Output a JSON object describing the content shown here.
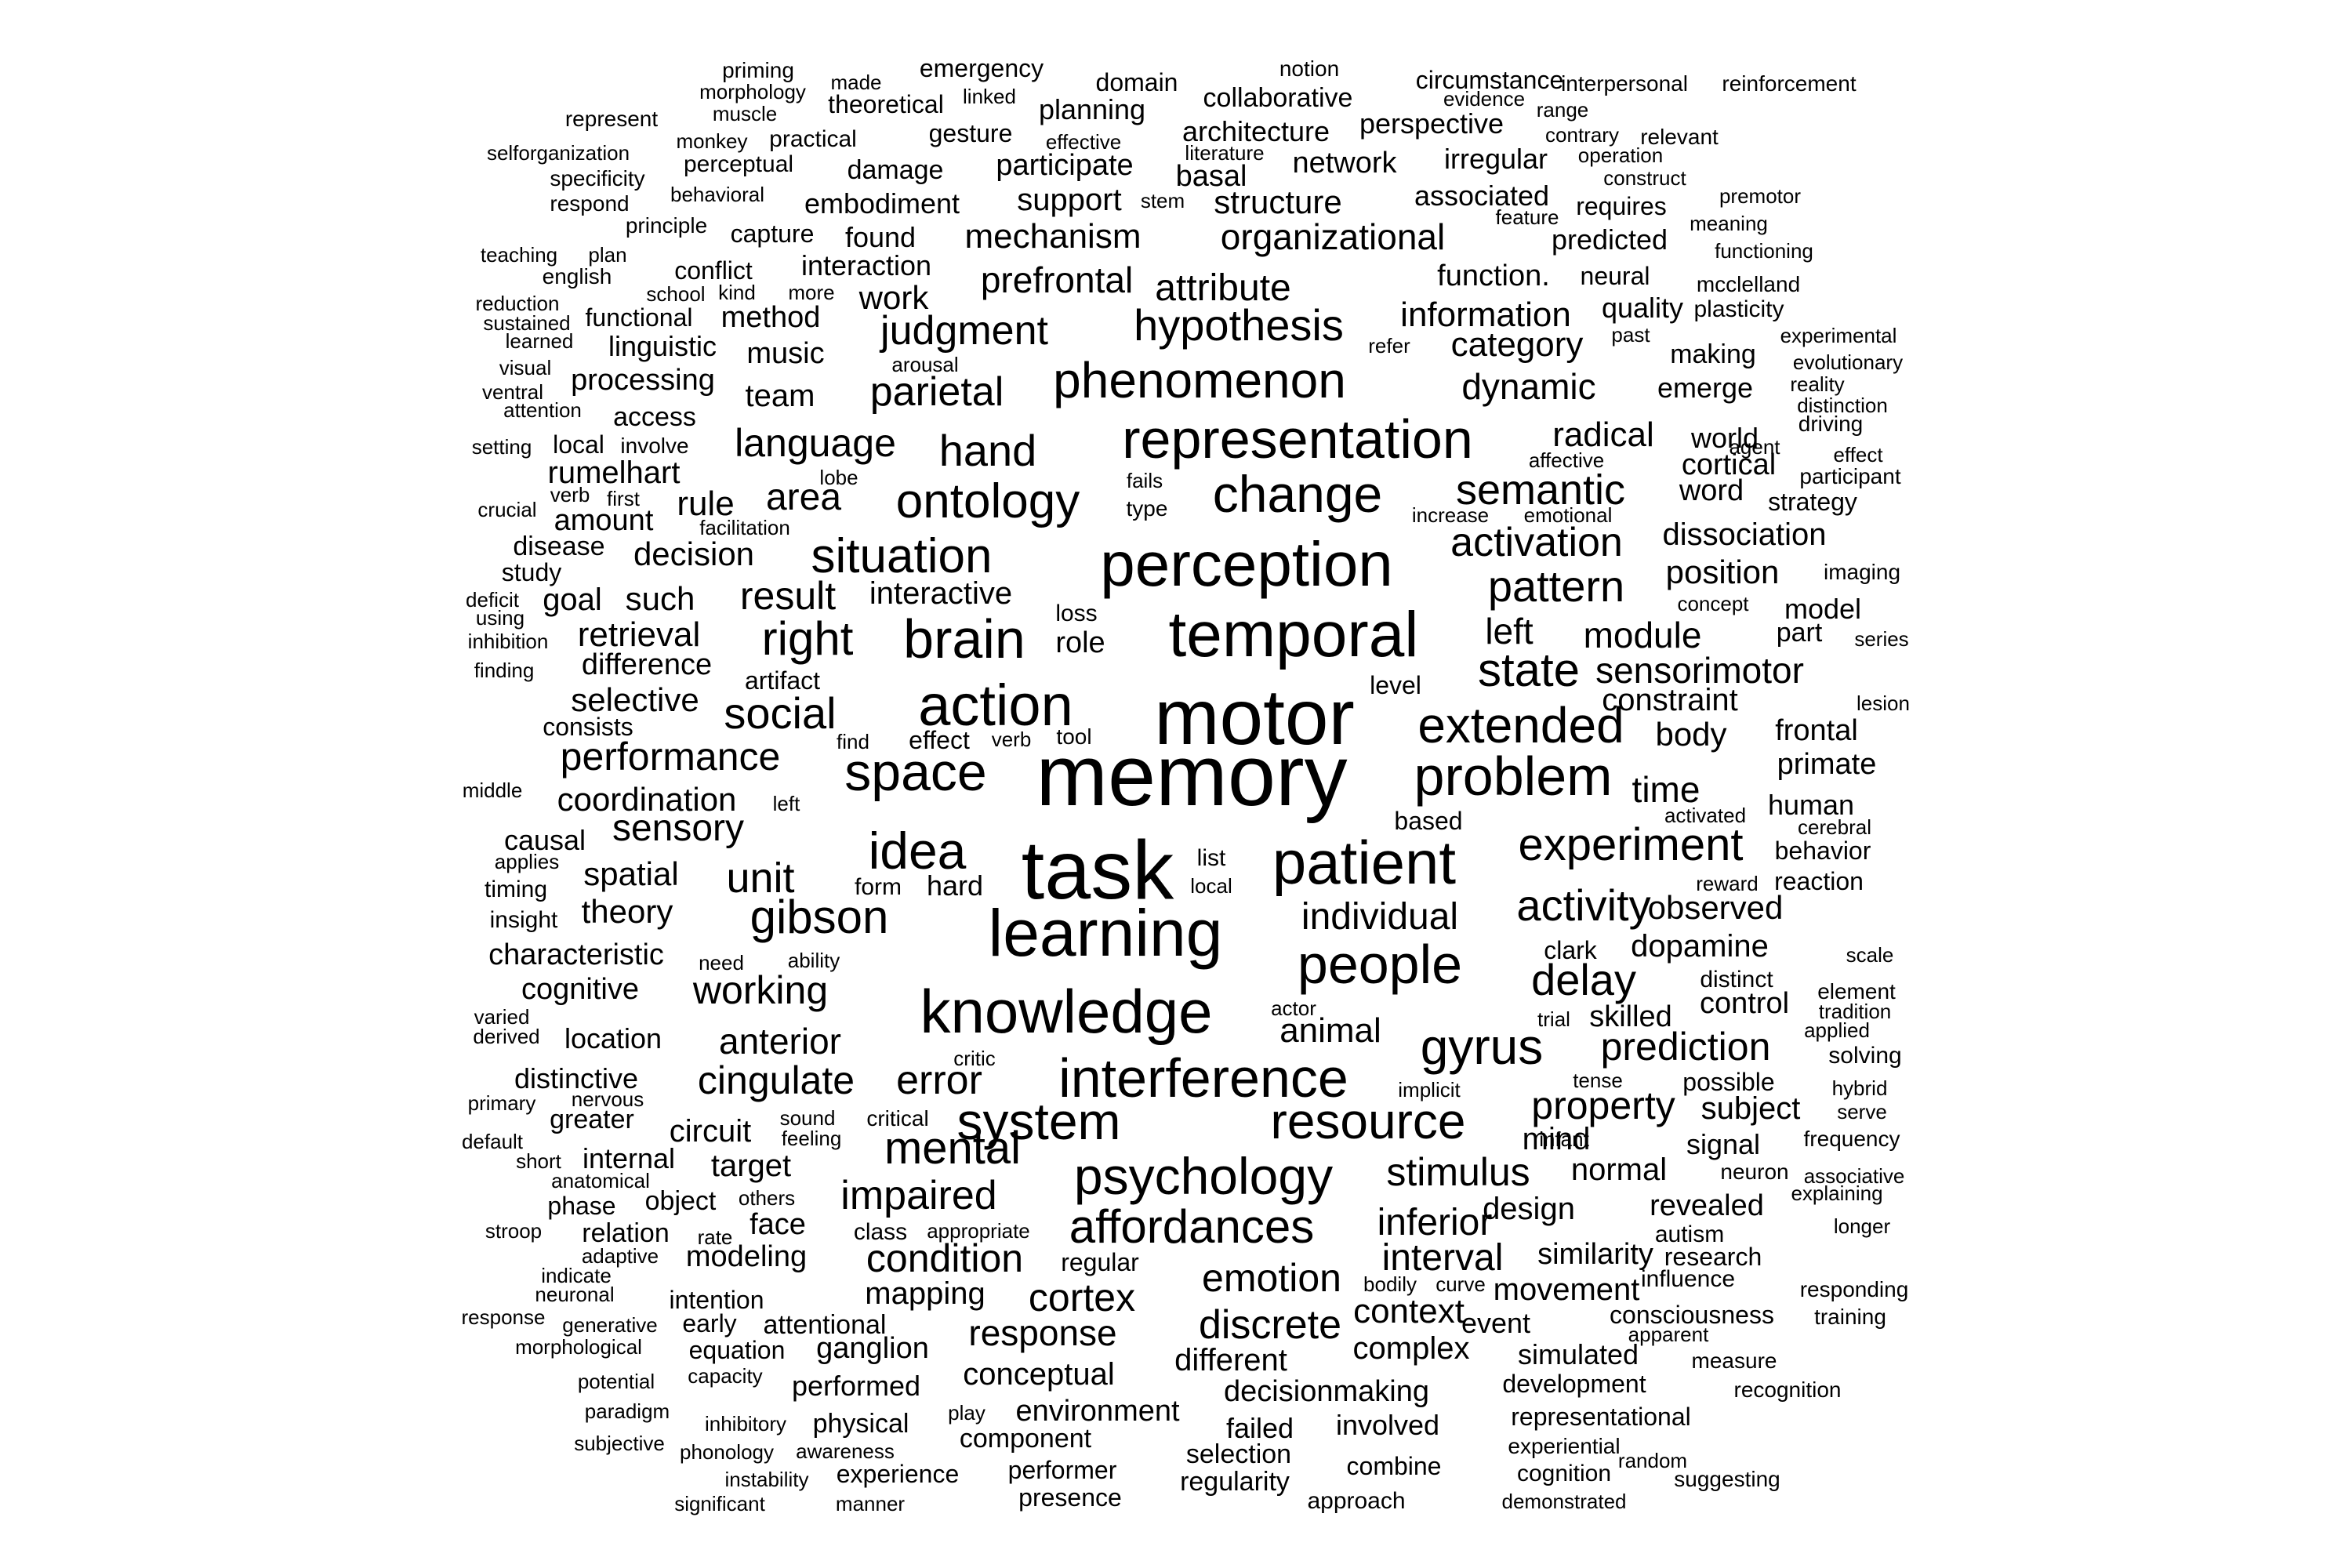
{
  "words": [
    "memory",
    "task",
    "motor",
    "learning",
    "knowledge",
    "perception",
    "patient",
    "temporal",
    "action",
    "people",
    "representation",
    "interference",
    "psychology",
    "brain",
    "space",
    "system",
    "problem",
    "phenomenon",
    "change",
    "ontology",
    "situation",
    "idea",
    "resource",
    "affordances",
    "gibson",
    "gyrus",
    "extended",
    "experiment",
    "state",
    "mental",
    "right",
    "hypothesis",
    "social",
    "semantic",
    "activity",
    "pattern",
    "impaired",
    "discrete",
    "activation",
    "language",
    "stimulus",
    "error",
    "delay",
    "hand",
    "judgment",
    "cortex",
    "emotion",
    "parietal",
    "performance",
    "property",
    "condition",
    "working",
    "unit",
    "prediction",
    "cingulate",
    "prefrontal",
    "interval",
    "attribute",
    "sensory",
    "anterior",
    "inferior",
    "category",
    "result",
    "individual",
    "mechanism",
    "information",
    "dynamic",
    "response",
    "organizational",
    "context",
    "time",
    "module",
    "animal",
    "sensorimotor",
    "area",
    "radical",
    "dissociation",
    "movement",
    "conceptual",
    "constraint",
    "retrieval",
    "position",
    "observed",
    "design",
    "dopamine",
    "mind",
    "left",
    "normal",
    "revealed",
    "similarity",
    "complex",
    "spatial",
    "theory",
    "different",
    "decisionmaking",
    "selective",
    "decision",
    "coordination",
    "interactive",
    "mapping",
    "environment",
    "target",
    "skilled",
    "control",
    "function.",
    "rule",
    "characteristic",
    "cognitive",
    "such",
    "distinctive",
    "circuit",
    "body",
    "primate",
    "subject",
    "frontal",
    "physical",
    "structure",
    "support",
    "participate",
    "architecture",
    "network",
    "associated",
    "work",
    "mapping",
    "simulated",
    "event",
    "signal",
    "method",
    "music",
    "processing",
    "team",
    "access",
    "cortical",
    "word",
    "quality",
    "emerge",
    "strategy",
    "making",
    "world",
    "human",
    "model",
    "part",
    "role",
    "modeling",
    "object",
    "face",
    "relation",
    "internal",
    "greater",
    "location",
    "performed",
    "ganglion",
    "attentional",
    "equation",
    "early",
    "intention",
    "component",
    "performer",
    "presence",
    "failed",
    "selection",
    "regularity",
    "involved",
    "combine",
    "approach",
    "development",
    "representational",
    "experiential",
    "cognition",
    "demonstrated",
    "experience",
    "awareness",
    "phonology",
    "instability",
    "significant",
    "manner",
    "subjective",
    "paradigm",
    "potential",
    "inhibitory",
    "capacity",
    "play",
    "goal",
    "difference",
    "selective",
    "coordination",
    "causal",
    "amount",
    "rumelhart",
    "local",
    "disease",
    "study",
    "memory",
    "practical",
    "gesture",
    "damage",
    "embodiment",
    "capture",
    "found",
    "interaction",
    "functional",
    "linguistic",
    "conflict",
    "school",
    "kind",
    "more",
    "english",
    "plan",
    "teaching",
    "principle",
    "behavioral",
    "respond",
    "specificity",
    "selforganization",
    "represent",
    "monkey",
    "muscle",
    "morphology",
    "priming",
    "made",
    "theoretical",
    "emergency",
    "linked",
    "planning",
    "domain",
    "collaborative",
    "notion",
    "circumstance",
    "evidence",
    "perspective",
    "interpersonal",
    "range",
    "contrary",
    "relevant",
    "reinforcement",
    "operation",
    "construct",
    "irregular",
    "premotor",
    "requires",
    "feature",
    "meaning",
    "predicted",
    "functioning",
    "neural",
    "mcclelland",
    "plasticity",
    "past",
    "experimental",
    "evolutionary",
    "reality",
    "distinction",
    "driving",
    "agent",
    "effect",
    "participant",
    "affective",
    "emotional",
    "increase",
    "fails",
    "type",
    "lobe",
    "facilitation",
    "imaging",
    "concept",
    "series",
    "lesion",
    "loss",
    "level",
    "effect",
    "verb",
    "tool",
    "find",
    "consists",
    "artifact",
    "using",
    "inhibition",
    "deficit",
    "finding",
    "middle",
    "left",
    "based",
    "activated",
    "cerebral",
    "reward",
    "behavior",
    "reaction",
    "list",
    "local",
    "form",
    "hard",
    "applies",
    "timing",
    "insight",
    "need",
    "ability",
    "clark",
    "distinct",
    "element",
    "tradition",
    "scale",
    "applied",
    "solving",
    "hybrid",
    "serve",
    "frequency",
    "possible",
    "tense",
    "implicit",
    "trial",
    "actor",
    "critic",
    "critical",
    "sound",
    "feeling",
    "others",
    "rate",
    "class",
    "appropriate",
    "regular",
    "bodily",
    "curve",
    "infant",
    "neuron",
    "associative",
    "explaining",
    "longer",
    "autism",
    "research",
    "influence",
    "apparent",
    "training",
    "responding",
    "measure",
    "recognition",
    "random",
    "suggesting",
    "consciousness",
    "varied",
    "derived",
    "primary",
    "default",
    "short",
    "anatomical",
    "phase",
    "nervous",
    "stroop",
    "adaptive",
    "indicate",
    "neuronal",
    "generative",
    "morphological",
    "response",
    "visual",
    "ventral",
    "attention",
    "learned",
    "sustained",
    "reduction",
    "setting",
    "crucial",
    "verb",
    "first",
    "involve",
    "literature",
    "effective",
    "basal",
    "stem",
    "arousal",
    "refer",
    "perceptual",
    "architecture"
  ],
  "labels": {
    "memory": "memory",
    "task": "task",
    "motor": "motor",
    "learning": "learning",
    "knowledge": "knowledge"
  }
}
